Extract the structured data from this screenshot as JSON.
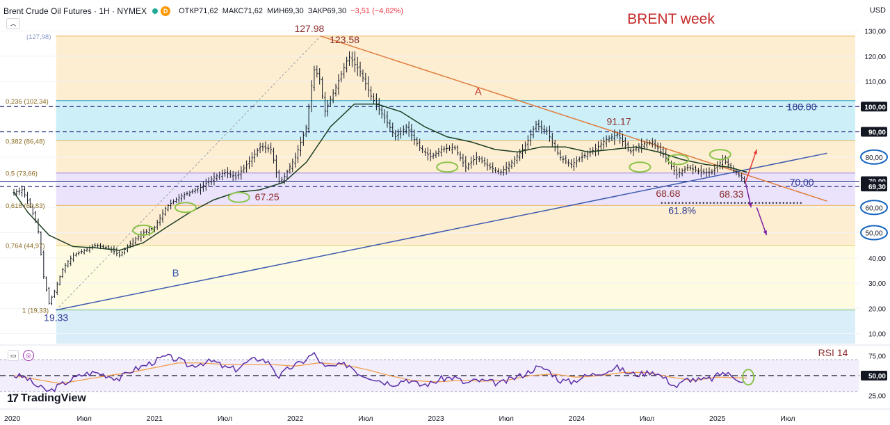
{
  "header": {
    "symbol": "Brent Crude Oil Futures · 1Н · NYMEX",
    "o_label": "ОТКР",
    "o_val": "71,62",
    "h_label": "МАКС",
    "h_val": "71,62",
    "l_label": "МИН",
    "l_val": "69,30",
    "c_label": "ЗАКР",
    "c_val": "69,30",
    "change": "−3,51 (−4,82%)",
    "badge": "D",
    "currency": "USD"
  },
  "colors": {
    "candle": "#131722",
    "ma": "#1b3d22",
    "line_a": "#e07b3a",
    "line_b": "#3d5aae",
    "rsi": "#5b2fa8",
    "rsi_ma": "#f0a050",
    "ellipse": "#8bc34a",
    "price_tag": "#131722"
  },
  "chart_data": {
    "type": "candlestick",
    "title": "BRENT week",
    "fib_levels": [
      {
        "label": "(127,98)",
        "value": 127.98
      },
      {
        "label": "0,236 (102,34)",
        "value": 102.34
      },
      {
        "label": "0,382 (86,48)",
        "value": 86.48
      },
      {
        "label": "0,5 (73,66)",
        "value": 73.66
      },
      {
        "label": "0,618 (60,83)",
        "value": 60.83
      },
      {
        "label": "0,764 (44,97)",
        "value": 44.97
      },
      {
        "label": "1 (19,33)",
        "value": 19.33
      }
    ],
    "y_ticks": [
      "130,00",
      "120,00",
      "110,00",
      "100,00",
      "90,00",
      "80,00",
      "70,00",
      "60,00",
      "50,00",
      "40,00",
      "30,00",
      "20,00",
      "10,00"
    ],
    "y_range": [
      6,
      134
    ],
    "x_ticks": [
      "2020",
      "Июл",
      "2021",
      "Июл",
      "2022",
      "Июл",
      "2023",
      "Июл",
      "2024",
      "Июл",
      "2025",
      "Июл"
    ],
    "price_tags": [
      {
        "label": "100,00",
        "value": 100,
        "style": "solid"
      },
      {
        "label": "90,00",
        "value": 90,
        "style": "solid"
      },
      {
        "label": "80,00",
        "value": 80,
        "style": "circle"
      },
      {
        "label": "70,00",
        "value": 70.4,
        "style": "solid"
      },
      {
        "label": "69,30",
        "value": 68.3,
        "style": "solid"
      },
      {
        "label": "60,00",
        "value": 60,
        "style": "circle"
      },
      {
        "label": "50,00",
        "value": 50,
        "style": "circle"
      }
    ],
    "annotations": [
      {
        "text": "127.98",
        "x": 2022.1,
        "y": 127.98
      },
      {
        "text": "123.58",
        "x": 2022.35,
        "y": 123.58
      },
      {
        "text": "A",
        "x": 2023.3,
        "y": 106
      },
      {
        "text": "100.00",
        "x": 2025.6,
        "y": 100
      },
      {
        "text": "91.17",
        "x": 2024.3,
        "y": 91.17
      },
      {
        "text": "70.00",
        "x": 2025.6,
        "y": 70
      },
      {
        "text": "68.68",
        "x": 2024.65,
        "y": 68.68
      },
      {
        "text": "68.33",
        "x": 2025.1,
        "y": 68.33
      },
      {
        "text": "67.25",
        "x": 2021.8,
        "y": 67.25
      },
      {
        "text": "61.8%",
        "x": 2024.75,
        "y": 61.8
      },
      {
        "text": "B",
        "x": 2021.15,
        "y": 37
      },
      {
        "text": "19.33",
        "x": 2020.3,
        "y": 19.33
      }
    ],
    "price": [
      [
        2020.0,
        66
      ],
      [
        2020.06,
        67
      ],
      [
        2020.12,
        60
      ],
      [
        2020.17,
        52
      ],
      [
        2020.21,
        33
      ],
      [
        2020.25,
        22
      ],
      [
        2020.29,
        27
      ],
      [
        2020.35,
        36
      ],
      [
        2020.42,
        41
      ],
      [
        2020.5,
        43
      ],
      [
        2020.58,
        45
      ],
      [
        2020.67,
        44
      ],
      [
        2020.75,
        41
      ],
      [
        2020.83,
        46
      ],
      [
        2020.92,
        50
      ],
      [
        2021.0,
        52
      ],
      [
        2021.08,
        60
      ],
      [
        2021.17,
        64
      ],
      [
        2021.25,
        66
      ],
      [
        2021.33,
        68
      ],
      [
        2021.42,
        72
      ],
      [
        2021.5,
        74
      ],
      [
        2021.58,
        72
      ],
      [
        2021.67,
        78
      ],
      [
        2021.75,
        84
      ],
      [
        2021.83,
        83
      ],
      [
        2021.88,
        70
      ],
      [
        2021.92,
        72
      ],
      [
        2022.0,
        80
      ],
      [
        2022.08,
        92
      ],
      [
        2022.13,
        115
      ],
      [
        2022.17,
        112
      ],
      [
        2022.21,
        98
      ],
      [
        2022.29,
        108
      ],
      [
        2022.38,
        120
      ],
      [
        2022.46,
        114
      ],
      [
        2022.54,
        104
      ],
      [
        2022.63,
        96
      ],
      [
        2022.71,
        88
      ],
      [
        2022.79,
        92
      ],
      [
        2022.88,
        84
      ],
      [
        2022.96,
        80
      ],
      [
        2023.04,
        83
      ],
      [
        2023.13,
        84
      ],
      [
        2023.21,
        76
      ],
      [
        2023.29,
        80
      ],
      [
        2023.38,
        76
      ],
      [
        2023.46,
        74
      ],
      [
        2023.54,
        78
      ],
      [
        2023.63,
        84
      ],
      [
        2023.71,
        93
      ],
      [
        2023.79,
        90
      ],
      [
        2023.88,
        80
      ],
      [
        2023.96,
        77
      ],
      [
        2024.04,
        80
      ],
      [
        2024.13,
        83
      ],
      [
        2024.21,
        87
      ],
      [
        2024.29,
        89
      ],
      [
        2024.38,
        82
      ],
      [
        2024.46,
        85
      ],
      [
        2024.54,
        86
      ],
      [
        2024.63,
        80
      ],
      [
        2024.71,
        73
      ],
      [
        2024.79,
        76
      ],
      [
        2024.88,
        74
      ],
      [
        2024.96,
        74
      ],
      [
        2025.04,
        79
      ],
      [
        2025.13,
        74
      ],
      [
        2025.17,
        72
      ],
      [
        2025.21,
        69
      ]
    ],
    "ma": [
      [
        2020.0,
        66
      ],
      [
        2020.1,
        58
      ],
      [
        2020.25,
        49
      ],
      [
        2020.42,
        44.5
      ],
      [
        2020.58,
        44
      ],
      [
        2020.75,
        43
      ],
      [
        2020.92,
        46
      ],
      [
        2021.08,
        52
      ],
      [
        2021.25,
        58
      ],
      [
        2021.42,
        63
      ],
      [
        2021.58,
        66
      ],
      [
        2021.75,
        67
      ],
      [
        2021.92,
        70
      ],
      [
        2022.08,
        78
      ],
      [
        2022.25,
        92
      ],
      [
        2022.42,
        101
      ],
      [
        2022.58,
        101
      ],
      [
        2022.75,
        98
      ],
      [
        2022.92,
        92
      ],
      [
        2023.08,
        88
      ],
      [
        2023.25,
        86
      ],
      [
        2023.42,
        83
      ],
      [
        2023.58,
        82
      ],
      [
        2023.75,
        84
      ],
      [
        2023.92,
        84
      ],
      [
        2024.08,
        82
      ],
      [
        2024.25,
        83
      ],
      [
        2024.42,
        84
      ],
      [
        2024.58,
        82
      ],
      [
        2024.75,
        79
      ],
      [
        2024.92,
        77
      ],
      [
        2025.08,
        76
      ],
      [
        2025.21,
        74
      ]
    ],
    "line_a": {
      "label": "A",
      "from": [
        2022.18,
        127.98
      ],
      "to": [
        2025.78,
        62.5
      ]
    },
    "line_b": {
      "label": "B",
      "from": [
        2020.3,
        19.33
      ],
      "to": [
        2025.78,
        81.5
      ]
    },
    "rsi": {
      "label": "RSI 14",
      "ticks": [
        "75,00",
        "50,00",
        "25,00"
      ],
      "current_tag": "50,00",
      "range": [
        15,
        85
      ],
      "values": [
        [
          2020.0,
          50
        ],
        [
          2020.08,
          48
        ],
        [
          2020.17,
          36
        ],
        [
          2020.25,
          30
        ],
        [
          2020.33,
          38
        ],
        [
          2020.42,
          46
        ],
        [
          2020.5,
          52
        ],
        [
          2020.58,
          54
        ],
        [
          2020.67,
          50
        ],
        [
          2020.75,
          46
        ],
        [
          2020.83,
          56
        ],
        [
          2020.92,
          62
        ],
        [
          2021.0,
          68
        ],
        [
          2021.08,
          74
        ],
        [
          2021.17,
          70
        ],
        [
          2021.25,
          62
        ],
        [
          2021.33,
          66
        ],
        [
          2021.42,
          68
        ],
        [
          2021.5,
          60
        ],
        [
          2021.58,
          58
        ],
        [
          2021.67,
          68
        ],
        [
          2021.75,
          72
        ],
        [
          2021.83,
          64
        ],
        [
          2021.88,
          48
        ],
        [
          2021.96,
          60
        ],
        [
          2022.04,
          66
        ],
        [
          2022.13,
          78
        ],
        [
          2022.21,
          60
        ],
        [
          2022.29,
          62
        ],
        [
          2022.38,
          64
        ],
        [
          2022.46,
          52
        ],
        [
          2022.54,
          48
        ],
        [
          2022.63,
          42
        ],
        [
          2022.71,
          40
        ],
        [
          2022.79,
          46
        ],
        [
          2022.88,
          38
        ],
        [
          2022.96,
          40
        ],
        [
          2023.04,
          46
        ],
        [
          2023.13,
          48
        ],
        [
          2023.21,
          40
        ],
        [
          2023.29,
          44
        ],
        [
          2023.38,
          42
        ],
        [
          2023.46,
          40
        ],
        [
          2023.54,
          46
        ],
        [
          2023.63,
          52
        ],
        [
          2023.71,
          60
        ],
        [
          2023.79,
          58
        ],
        [
          2023.88,
          44
        ],
        [
          2023.96,
          42
        ],
        [
          2024.04,
          48
        ],
        [
          2024.13,
          52
        ],
        [
          2024.21,
          56
        ],
        [
          2024.29,
          60
        ],
        [
          2024.38,
          52
        ],
        [
          2024.46,
          52
        ],
        [
          2024.54,
          56
        ],
        [
          2024.63,
          46
        ],
        [
          2024.71,
          36
        ],
        [
          2024.79,
          46
        ],
        [
          2024.88,
          44
        ],
        [
          2024.96,
          46
        ],
        [
          2025.04,
          54
        ],
        [
          2025.13,
          48
        ],
        [
          2025.21,
          40
        ]
      ],
      "ma": [
        [
          2020.0,
          50
        ],
        [
          2020.17,
          45
        ],
        [
          2020.33,
          40
        ],
        [
          2020.5,
          45
        ],
        [
          2020.67,
          50
        ],
        [
          2020.83,
          54
        ],
        [
          2021.0,
          60
        ],
        [
          2021.17,
          66
        ],
        [
          2021.33,
          66
        ],
        [
          2021.5,
          64
        ],
        [
          2021.67,
          64
        ],
        [
          2021.83,
          64
        ],
        [
          2022.0,
          62
        ],
        [
          2022.17,
          66
        ],
        [
          2022.33,
          64
        ],
        [
          2022.5,
          58
        ],
        [
          2022.67,
          50
        ],
        [
          2022.83,
          44
        ],
        [
          2023.0,
          42
        ],
        [
          2023.17,
          44
        ],
        [
          2023.33,
          43
        ],
        [
          2023.5,
          44
        ],
        [
          2023.67,
          50
        ],
        [
          2023.83,
          52
        ],
        [
          2024.0,
          48
        ],
        [
          2024.17,
          50
        ],
        [
          2024.33,
          54
        ],
        [
          2024.5,
          54
        ],
        [
          2024.67,
          48
        ],
        [
          2024.83,
          44
        ],
        [
          2025.0,
          48
        ],
        [
          2025.21,
          47
        ]
      ]
    }
  },
  "branding": {
    "name": "TradingView"
  }
}
